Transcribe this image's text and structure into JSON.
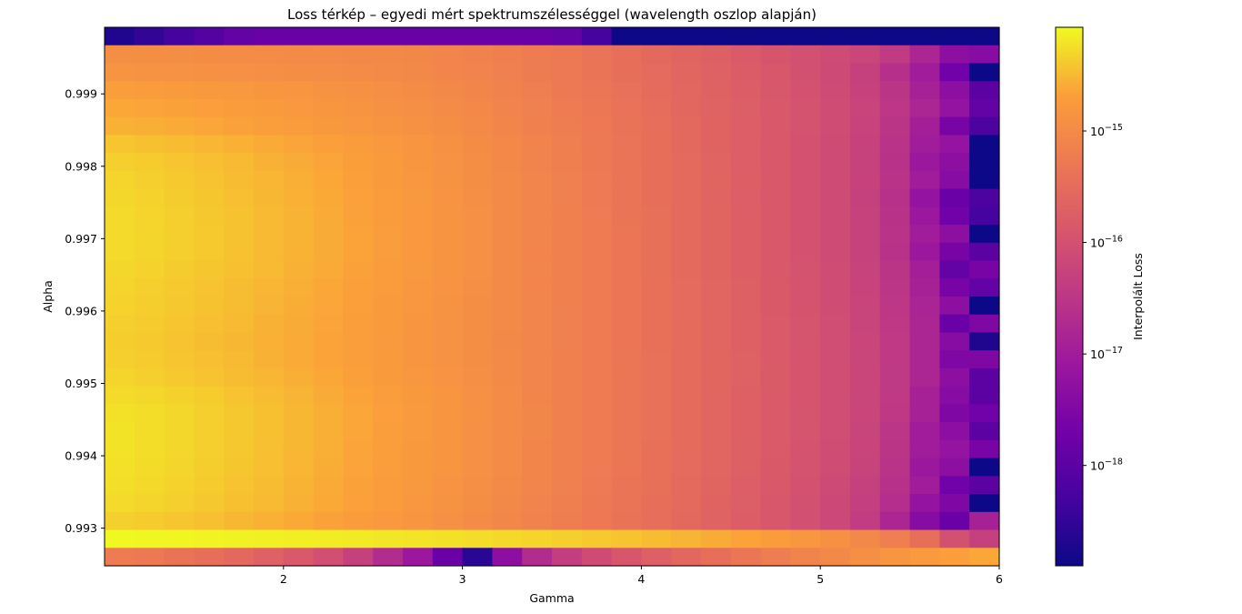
{
  "chart_data": {
    "type": "heatmap",
    "title": "Loss térkép – egyedi mért spektrumszélességgel (wavelength oszlop alapján)",
    "xlabel": "Gamma",
    "ylabel": "Alpha",
    "colorbar_label": "Interpolált Loss",
    "colormap": "plasma",
    "color_scale": "log",
    "x_range": [
      1.0,
      6.0
    ],
    "y_range": [
      0.99248,
      0.99992
    ],
    "x_ticks": [
      2,
      3,
      4,
      5,
      6
    ],
    "x_tick_labels": [
      "2",
      "3",
      "4",
      "5",
      "6"
    ],
    "y_ticks": [
      0.993,
      0.994,
      0.995,
      0.996,
      0.997,
      0.998,
      0.999
    ],
    "y_tick_labels": [
      "0.993",
      "0.994",
      "0.995",
      "0.996",
      "0.997",
      "0.998",
      "0.999"
    ],
    "colorbar_range_log10": [
      -18.9,
      -14.07
    ],
    "colorbar_ticks_log10": [
      -18,
      -17,
      -16,
      -15
    ],
    "colorbar_tick_bases": [
      "10",
      "10",
      "10",
      "10"
    ],
    "colorbar_tick_exponents": [
      "−18",
      "−17",
      "−16",
      "−15"
    ],
    "grid": false,
    "n_cols": 30,
    "n_rows": 30,
    "rows_top_to_bottom_log10": [
      [
        -18.7,
        -18.5,
        -18.3,
        -18.1,
        -17.9,
        -17.8,
        -17.8,
        -17.8,
        -17.8,
        -17.8,
        -17.8,
        -17.8,
        -17.8,
        -17.8,
        -17.8,
        -17.9,
        -18.3,
        -18.9,
        -18.9,
        -18.9,
        -18.9,
        -18.9,
        -18.9,
        -18.9,
        -18.9,
        -18.9,
        -18.9,
        -18.9,
        -18.9,
        -18.9
      ],
      [
        -14.94,
        -14.95,
        -14.96,
        -14.97,
        -14.98,
        -14.99,
        -15.0,
        -15.01,
        -15.02,
        -15.03,
        -15.06,
        -15.09,
        -15.13,
        -15.19,
        -15.25,
        -15.3,
        -15.37,
        -15.47,
        -15.56,
        -15.65,
        -15.73,
        -15.83,
        -15.91,
        -16.01,
        -16.11,
        -16.22,
        -16.41,
        -16.8,
        -17.3,
        -17.4
      ],
      [
        -14.85,
        -14.87,
        -14.88,
        -14.9,
        -14.91,
        -14.93,
        -14.94,
        -14.96,
        -14.98,
        -15.0,
        -15.03,
        -15.07,
        -15.11,
        -15.17,
        -15.23,
        -15.29,
        -15.36,
        -15.45,
        -15.53,
        -15.62,
        -15.7,
        -15.79,
        -15.89,
        -15.99,
        -16.12,
        -16.3,
        -16.61,
        -17.0,
        -17.7,
        -18.9
      ],
      [
        -14.7,
        -14.72,
        -14.74,
        -14.77,
        -14.79,
        -14.82,
        -14.84,
        -14.87,
        -14.9,
        -14.93,
        -14.97,
        -15.02,
        -15.07,
        -15.13,
        -15.2,
        -15.27,
        -15.33,
        -15.42,
        -15.51,
        -15.6,
        -15.68,
        -15.77,
        -15.87,
        -15.98,
        -16.1,
        -16.27,
        -16.52,
        -16.9,
        -17.3,
        -18.0
      ],
      [
        -14.62,
        -14.64,
        -14.66,
        -14.69,
        -14.72,
        -14.75,
        -14.78,
        -14.81,
        -14.85,
        -14.89,
        -14.93,
        -14.99,
        -15.04,
        -15.1,
        -15.17,
        -15.24,
        -15.31,
        -15.4,
        -15.49,
        -15.58,
        -15.67,
        -15.76,
        -15.86,
        -15.96,
        -16.09,
        -16.24,
        -16.48,
        -16.8,
        -17.2,
        -17.9
      ],
      [
        -14.55,
        -14.57,
        -14.6,
        -14.63,
        -14.66,
        -14.7,
        -14.73,
        -14.77,
        -14.8,
        -14.85,
        -14.9,
        -14.95,
        -15.01,
        -15.07,
        -15.15,
        -15.22,
        -15.29,
        -15.38,
        -15.47,
        -15.57,
        -15.66,
        -15.75,
        -15.85,
        -15.96,
        -16.08,
        -16.25,
        -16.52,
        -16.95,
        -17.6,
        -18.2
      ],
      [
        -14.42,
        -14.45,
        -14.48,
        -14.52,
        -14.56,
        -14.6,
        -14.64,
        -14.68,
        -14.73,
        -14.78,
        -14.84,
        -14.9,
        -14.97,
        -15.04,
        -15.12,
        -15.2,
        -15.28,
        -15.37,
        -15.46,
        -15.56,
        -15.66,
        -15.75,
        -15.86,
        -15.97,
        -16.1,
        -16.27,
        -16.55,
        -17.0,
        -17.2,
        -18.9
      ],
      [
        -14.35,
        -14.38,
        -14.42,
        -14.46,
        -14.5,
        -14.55,
        -14.59,
        -14.64,
        -14.7,
        -14.75,
        -14.81,
        -14.88,
        -14.95,
        -15.02,
        -15.1,
        -15.18,
        -15.27,
        -15.36,
        -15.45,
        -15.55,
        -15.65,
        -15.75,
        -15.86,
        -15.97,
        -16.1,
        -16.28,
        -16.57,
        -17.1,
        -17.3,
        -18.9
      ],
      [
        -14.32,
        -14.35,
        -14.39,
        -14.43,
        -14.48,
        -14.52,
        -14.57,
        -14.62,
        -14.68,
        -14.74,
        -14.8,
        -14.87,
        -14.94,
        -15.01,
        -15.09,
        -15.17,
        -15.26,
        -15.35,
        -15.45,
        -15.54,
        -15.64,
        -15.74,
        -15.85,
        -15.97,
        -16.1,
        -16.27,
        -16.55,
        -17.0,
        -17.4,
        -18.9
      ],
      [
        -14.3,
        -14.33,
        -14.37,
        -14.41,
        -14.46,
        -14.51,
        -14.56,
        -14.61,
        -14.67,
        -14.73,
        -14.79,
        -14.86,
        -14.93,
        -15.01,
        -15.09,
        -15.17,
        -15.26,
        -15.35,
        -15.45,
        -15.55,
        -15.65,
        -15.75,
        -15.86,
        -15.98,
        -16.11,
        -16.3,
        -16.6,
        -17.2,
        -17.8,
        -18.2
      ],
      [
        -14.28,
        -14.32,
        -14.35,
        -14.4,
        -14.44,
        -14.49,
        -14.54,
        -14.6,
        -14.66,
        -14.72,
        -14.78,
        -14.85,
        -14.92,
        -15.0,
        -15.08,
        -15.16,
        -15.25,
        -15.35,
        -15.44,
        -15.54,
        -15.64,
        -15.74,
        -15.85,
        -15.97,
        -16.1,
        -16.28,
        -16.57,
        -17.1,
        -17.7,
        -18.3
      ],
      [
        -14.28,
        -14.31,
        -14.35,
        -14.39,
        -14.44,
        -14.49,
        -14.54,
        -14.59,
        -14.65,
        -14.71,
        -14.78,
        -14.85,
        -14.92,
        -15.0,
        -15.08,
        -15.16,
        -15.25,
        -15.34,
        -15.44,
        -15.54,
        -15.64,
        -15.74,
        -15.85,
        -15.97,
        -16.1,
        -16.28,
        -16.55,
        -17.0,
        -17.3,
        -18.9
      ],
      [
        -14.28,
        -14.31,
        -14.35,
        -14.39,
        -14.44,
        -14.49,
        -14.54,
        -14.59,
        -14.65,
        -14.71,
        -14.78,
        -14.85,
        -14.92,
        -15.0,
        -15.08,
        -15.16,
        -15.25,
        -15.34,
        -15.44,
        -15.54,
        -15.64,
        -15.74,
        -15.85,
        -15.97,
        -16.1,
        -16.28,
        -16.57,
        -17.1,
        -17.6,
        -18.0
      ],
      [
        -14.3,
        -14.33,
        -14.37,
        -14.41,
        -14.45,
        -14.5,
        -14.55,
        -14.6,
        -14.66,
        -14.72,
        -14.79,
        -14.85,
        -14.92,
        -15.0,
        -15.08,
        -15.16,
        -15.25,
        -15.34,
        -15.44,
        -15.54,
        -15.64,
        -15.74,
        -15.85,
        -15.96,
        -16.09,
        -16.26,
        -16.52,
        -16.95,
        -17.9,
        -17.6
      ],
      [
        -14.32,
        -14.35,
        -14.39,
        -14.43,
        -14.47,
        -14.52,
        -14.57,
        -14.62,
        -14.68,
        -14.73,
        -14.8,
        -14.86,
        -14.93,
        -15.01,
        -15.08,
        -15.16,
        -15.25,
        -15.34,
        -15.43,
        -15.53,
        -15.63,
        -15.73,
        -15.84,
        -15.95,
        -16.08,
        -16.25,
        -16.5,
        -16.9,
        -17.6,
        -17.9
      ],
      [
        -14.33,
        -14.36,
        -14.4,
        -14.44,
        -14.48,
        -14.53,
        -14.58,
        -14.63,
        -14.68,
        -14.74,
        -14.8,
        -14.87,
        -14.94,
        -15.01,
        -15.09,
        -15.17,
        -15.25,
        -15.34,
        -15.43,
        -15.53,
        -15.63,
        -15.73,
        -15.84,
        -15.95,
        -16.08,
        -16.24,
        -16.48,
        -16.85,
        -17.3,
        -18.9
      ],
      [
        -14.35,
        -14.38,
        -14.42,
        -14.46,
        -14.5,
        -14.55,
        -14.59,
        -14.64,
        -14.7,
        -14.75,
        -14.81,
        -14.88,
        -14.94,
        -15.01,
        -15.09,
        -15.17,
        -15.25,
        -15.34,
        -15.43,
        -15.52,
        -15.62,
        -15.72,
        -15.83,
        -15.94,
        -16.07,
        -16.23,
        -16.47,
        -16.8,
        -17.8,
        -17.5
      ],
      [
        -14.36,
        -14.39,
        -14.43,
        -14.47,
        -14.51,
        -14.56,
        -14.6,
        -14.65,
        -14.7,
        -14.76,
        -14.82,
        -14.88,
        -14.95,
        -15.02,
        -15.09,
        -15.17,
        -15.25,
        -15.34,
        -15.43,
        -15.52,
        -15.62,
        -15.72,
        -15.82,
        -15.94,
        -16.06,
        -16.22,
        -16.45,
        -16.8,
        -17.4,
        -18.7
      ],
      [
        -14.35,
        -14.38,
        -14.42,
        -14.46,
        -14.5,
        -14.55,
        -14.6,
        -14.65,
        -14.7,
        -14.75,
        -14.81,
        -14.88,
        -14.94,
        -15.01,
        -15.09,
        -15.16,
        -15.25,
        -15.33,
        -15.42,
        -15.52,
        -15.61,
        -15.71,
        -15.82,
        -15.93,
        -16.05,
        -16.21,
        -16.44,
        -16.8,
        -17.5,
        -17.5
      ],
      [
        -14.32,
        -14.35,
        -14.39,
        -14.43,
        -14.48,
        -14.52,
        -14.57,
        -14.62,
        -14.68,
        -14.74,
        -14.8,
        -14.86,
        -14.93,
        -15.0,
        -15.08,
        -15.16,
        -15.24,
        -15.33,
        -15.42,
        -15.51,
        -15.61,
        -15.71,
        -15.81,
        -15.93,
        -16.05,
        -16.2,
        -16.43,
        -16.8,
        -17.3,
        -18.0
      ],
      [
        -14.27,
        -14.3,
        -14.34,
        -14.38,
        -14.43,
        -14.48,
        -14.53,
        -14.59,
        -14.65,
        -14.71,
        -14.77,
        -14.84,
        -14.91,
        -14.99,
        -15.07,
        -15.15,
        -15.24,
        -15.33,
        -15.42,
        -15.52,
        -15.62,
        -15.72,
        -15.82,
        -15.93,
        -16.06,
        -16.21,
        -16.45,
        -16.9,
        -17.4,
        -18.0
      ],
      [
        -14.23,
        -14.26,
        -14.3,
        -14.35,
        -14.4,
        -14.45,
        -14.51,
        -14.57,
        -14.63,
        -14.69,
        -14.76,
        -14.83,
        -14.9,
        -14.98,
        -15.06,
        -15.15,
        -15.24,
        -15.33,
        -15.42,
        -15.52,
        -15.62,
        -15.72,
        -15.83,
        -15.94,
        -16.06,
        -16.22,
        -16.47,
        -16.9,
        -17.5,
        -17.7
      ],
      [
        -14.22,
        -14.26,
        -14.3,
        -14.35,
        -14.4,
        -14.45,
        -14.51,
        -14.57,
        -14.63,
        -14.7,
        -14.76,
        -14.83,
        -14.91,
        -14.98,
        -15.06,
        -15.15,
        -15.24,
        -15.33,
        -15.42,
        -15.52,
        -15.62,
        -15.72,
        -15.83,
        -15.94,
        -16.07,
        -16.23,
        -16.5,
        -17.0,
        -17.3,
        -18.0
      ],
      [
        -14.22,
        -14.26,
        -14.3,
        -14.35,
        -14.4,
        -14.46,
        -14.51,
        -14.57,
        -14.64,
        -14.7,
        -14.77,
        -14.84,
        -14.91,
        -14.99,
        -15.07,
        -15.15,
        -15.24,
        -15.33,
        -15.43,
        -15.52,
        -15.62,
        -15.73,
        -15.83,
        -15.95,
        -16.08,
        -16.24,
        -16.52,
        -17.0,
        -17.2,
        -17.6
      ],
      [
        -14.23,
        -14.27,
        -14.31,
        -14.36,
        -14.41,
        -14.46,
        -14.52,
        -14.58,
        -14.64,
        -14.71,
        -14.77,
        -14.84,
        -14.92,
        -14.99,
        -15.07,
        -15.16,
        -15.25,
        -15.34,
        -15.43,
        -15.53,
        -15.63,
        -15.73,
        -15.84,
        -15.96,
        -16.09,
        -16.26,
        -16.55,
        -17.1,
        -17.3,
        -18.9
      ],
      [
        -14.25,
        -14.29,
        -14.33,
        -14.38,
        -14.43,
        -14.48,
        -14.54,
        -14.6,
        -14.66,
        -14.72,
        -14.79,
        -14.86,
        -14.93,
        -15.01,
        -15.09,
        -15.17,
        -15.26,
        -15.35,
        -15.44,
        -15.54,
        -15.64,
        -15.75,
        -15.86,
        -15.98,
        -16.12,
        -16.3,
        -16.6,
        -17.0,
        -17.7,
        -18.0
      ],
      [
        -14.28,
        -14.31,
        -14.35,
        -14.4,
        -14.45,
        -14.5,
        -14.55,
        -14.61,
        -14.67,
        -14.73,
        -14.8,
        -14.87,
        -14.94,
        -15.02,
        -15.1,
        -15.18,
        -15.27,
        -15.36,
        -15.45,
        -15.55,
        -15.66,
        -15.76,
        -15.88,
        -16.0,
        -16.14,
        -16.33,
        -16.65,
        -17.2,
        -17.5,
        -18.9
      ],
      [
        -14.35,
        -14.38,
        -14.42,
        -14.46,
        -14.51,
        -14.56,
        -14.61,
        -14.66,
        -14.72,
        -14.78,
        -14.84,
        -14.91,
        -14.98,
        -15.05,
        -15.13,
        -15.21,
        -15.29,
        -15.38,
        -15.47,
        -15.57,
        -15.67,
        -15.78,
        -15.89,
        -16.02,
        -16.17,
        -16.4,
        -16.8,
        -17.4,
        -17.8,
        -16.9
      ],
      [
        -14.08,
        -14.09,
        -14.1,
        -14.11,
        -14.12,
        -14.13,
        -14.14,
        -14.16,
        -14.17,
        -14.19,
        -14.21,
        -14.23,
        -14.26,
        -14.29,
        -14.32,
        -14.35,
        -14.39,
        -14.43,
        -14.48,
        -14.53,
        -14.59,
        -14.65,
        -14.72,
        -14.8,
        -14.9,
        -15.02,
        -15.2,
        -15.45,
        -16.0,
        -16.3
      ],
      [
        -15.25,
        -15.3,
        -15.38,
        -15.46,
        -15.57,
        -15.7,
        -15.85,
        -16.04,
        -16.3,
        -16.7,
        -17.1,
        -17.8,
        -18.6,
        -17.3,
        -16.7,
        -16.35,
        -16.1,
        -15.9,
        -15.73,
        -15.58,
        -15.45,
        -15.33,
        -15.22,
        -15.12,
        -15.02,
        -14.93,
        -14.84,
        -14.76,
        -14.69,
        -14.62
      ]
    ]
  }
}
